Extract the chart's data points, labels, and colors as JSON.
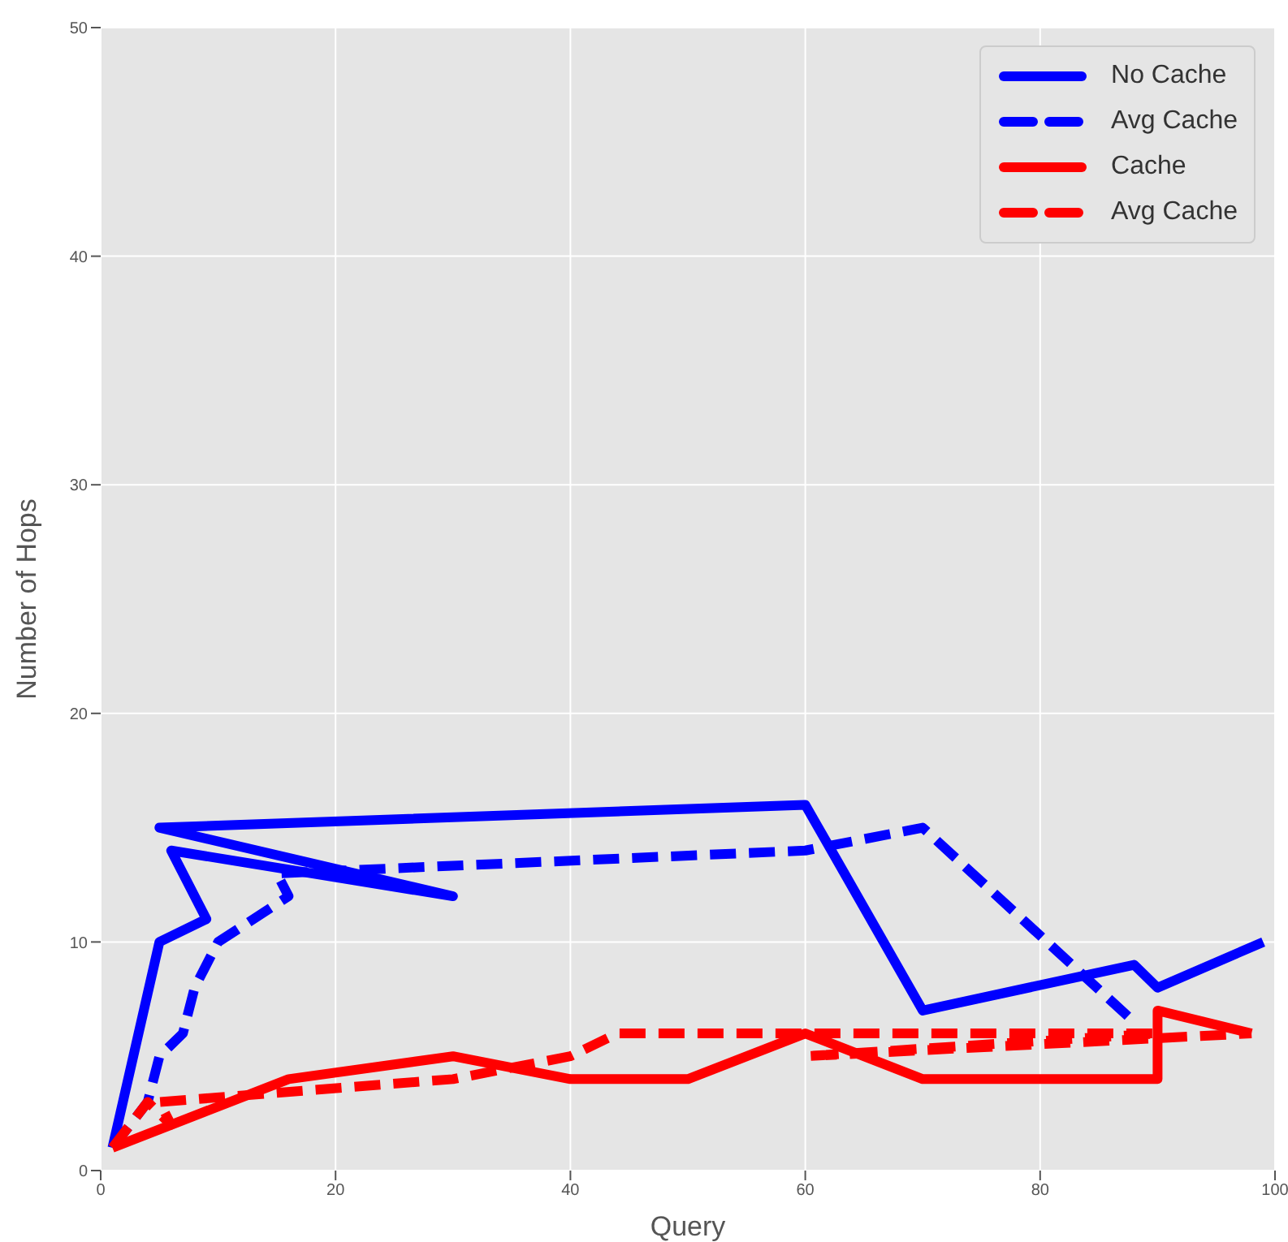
{
  "chart_data": {
    "type": "line",
    "xlabel": "Query",
    "ylabel": "Number of Hops",
    "xlim": [
      0,
      100
    ],
    "xticks": [
      0,
      20,
      40,
      60,
      80,
      100
    ],
    "ylim": [
      0,
      50
    ],
    "yticks": [
      0,
      10,
      20,
      30,
      40,
      50
    ],
    "grid": true,
    "legend": "top right",
    "marker": "none",
    "series": [
      {
        "name": "No Cache",
        "color": "#0000ff",
        "line_style": "solid",
        "x": [
          1,
          5,
          9,
          6,
          30,
          5,
          60,
          70,
          88,
          90,
          99
        ],
        "values": [
          1,
          10,
          11,
          14,
          12,
          15,
          16,
          7,
          9,
          8,
          10
        ]
      },
      {
        "name": "Avg Cache",
        "color": "#0000ff",
        "line_style": "dashed",
        "x": [
          1,
          4,
          5,
          7,
          8,
          10,
          16,
          15,
          60,
          70,
          88
        ],
        "values": [
          1,
          3,
          5,
          6,
          8,
          10,
          12,
          13,
          14,
          15,
          6.5
        ]
      },
      {
        "name": "Cache",
        "color": "#ff0000",
        "line_style": "solid",
        "x": [
          1,
          16,
          30,
          40,
          50,
          60,
          70,
          90,
          90,
          98
        ],
        "values": [
          1,
          4,
          5,
          4,
          4,
          6,
          4,
          4,
          7,
          6
        ]
      },
      {
        "name": "Avg Cache",
        "color": "#ff0000",
        "line_style": "dashed",
        "x": [
          1,
          4,
          6,
          5,
          30,
          40,
          44,
          90,
          60,
          98
        ],
        "values": [
          1,
          3,
          2,
          3,
          4,
          5,
          6,
          6,
          5,
          6
        ]
      }
    ]
  }
}
